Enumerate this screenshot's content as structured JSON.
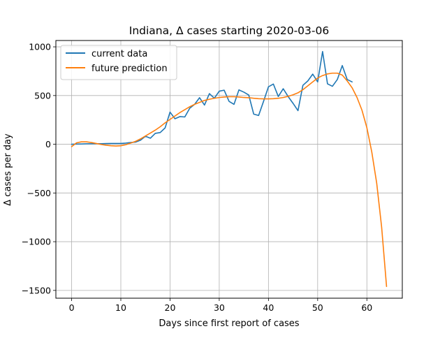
{
  "chart_data": {
    "type": "line",
    "title": "Indiana, Δ cases starting 2020-03-06",
    "xlabel": "Days since first report of cases",
    "ylabel": "Δ cases per day",
    "xlim": [
      -3.2,
      67.2
    ],
    "ylim": [
      -1580,
      1065
    ],
    "xticks": [
      0,
      10,
      20,
      30,
      40,
      50,
      60
    ],
    "yticks": [
      -1500,
      -1000,
      -500,
      0,
      500,
      1000
    ],
    "grid": true,
    "legend_position": "top-left",
    "series": [
      {
        "name": "current data",
        "color": "#1f77b4",
        "x": [
          0,
          1,
          2,
          3,
          4,
          5,
          6,
          7,
          8,
          9,
          10,
          11,
          12,
          13,
          14,
          15,
          16,
          17,
          18,
          19,
          20,
          21,
          22,
          23,
          24,
          25,
          26,
          27,
          28,
          29,
          30,
          31,
          32,
          33,
          34,
          35,
          36,
          37,
          38,
          39,
          40,
          41,
          42,
          43,
          44,
          45,
          46,
          47,
          48,
          49,
          50,
          51,
          52,
          53,
          54,
          55,
          56,
          57
        ],
        "y": [
          0,
          2,
          3,
          5,
          5,
          6,
          6,
          7,
          8,
          8,
          8,
          12,
          18,
          22,
          42,
          82,
          62,
          112,
          120,
          168,
          330,
          262,
          284,
          280,
          370,
          410,
          478,
          402,
          520,
          472,
          545,
          555,
          440,
          410,
          558,
          535,
          505,
          310,
          295,
          440,
          590,
          618,
          490,
          570,
          490,
          420,
          345,
          605,
          650,
          720,
          640,
          952,
          620,
          595,
          665,
          808,
          665,
          640
        ]
      },
      {
        "name": "future prediction",
        "color": "#ff7f0e",
        "x": [
          0,
          1,
          2,
          3,
          4,
          5,
          6,
          7,
          8,
          9,
          10,
          11,
          12,
          13,
          14,
          15,
          16,
          17,
          18,
          19,
          20,
          21,
          22,
          23,
          24,
          25,
          26,
          27,
          28,
          29,
          30,
          31,
          32,
          33,
          34,
          35,
          36,
          37,
          38,
          39,
          40,
          41,
          42,
          43,
          44,
          45,
          46,
          47,
          48,
          49,
          50,
          51,
          52,
          53,
          54,
          55,
          56,
          57,
          58,
          59,
          60,
          61,
          62,
          63,
          64
        ],
        "y": [
          -25,
          15,
          25,
          25,
          18,
          8,
          -2,
          -10,
          -15,
          -18,
          -15,
          -5,
          12,
          30,
          55,
          85,
          115,
          145,
          180,
          220,
          255,
          290,
          325,
          355,
          385,
          410,
          430,
          450,
          462,
          472,
          480,
          485,
          488,
          488,
          485,
          480,
          478,
          472,
          468,
          466,
          466,
          468,
          472,
          480,
          492,
          508,
          528,
          560,
          600,
          640,
          680,
          705,
          722,
          730,
          730,
          710,
          650,
          580,
          480,
          350,
          170,
          -80,
          -400,
          -850,
          -1460
        ]
      }
    ]
  }
}
